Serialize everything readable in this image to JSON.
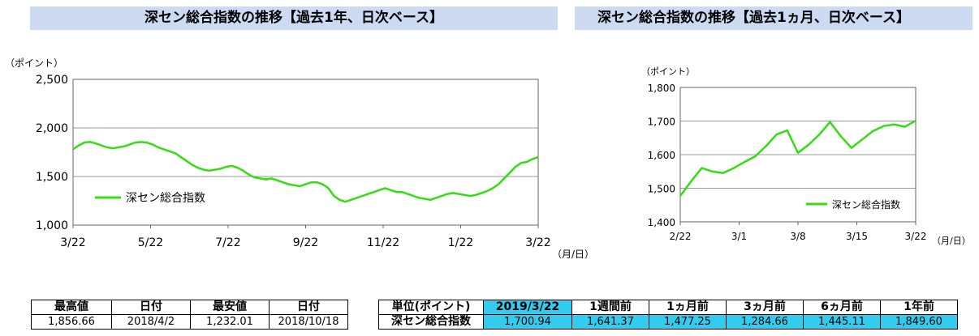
{
  "titles": {
    "left": "深セン総合指数の推移【過去1年、日次ベース】",
    "right": "深セン総合指数の推移【過去1ヵ月、日次ベース】"
  },
  "colors": {
    "line": "#33dd11",
    "title_bg": "#ccdaf2",
    "table_highlight": "#33ccee"
  },
  "chart_data": [
    {
      "type": "line",
      "ylabel": "（ポイント）",
      "xlabel": "（月/日）",
      "ylim": [
        1000,
        2500
      ],
      "yticks": [
        "2,500",
        "2,000",
        "1,500",
        "1,000"
      ],
      "ytick_values": [
        2500,
        2000,
        1500,
        1000
      ],
      "xticks": [
        "3/22",
        "5/22",
        "7/22",
        "9/22",
        "11/22",
        "1/22",
        "3/22"
      ],
      "grid": true,
      "legend": "center-left",
      "series": [
        {
          "name": "深セン総合指数",
          "values": [
            1780,
            1820,
            1850,
            1856,
            1840,
            1820,
            1800,
            1790,
            1800,
            1810,
            1830,
            1850,
            1855,
            1850,
            1830,
            1800,
            1780,
            1760,
            1740,
            1700,
            1660,
            1620,
            1590,
            1570,
            1560,
            1570,
            1580,
            1600,
            1610,
            1590,
            1560,
            1520,
            1490,
            1480,
            1470,
            1480,
            1460,
            1440,
            1420,
            1410,
            1400,
            1420,
            1440,
            1440,
            1420,
            1380,
            1300,
            1260,
            1240,
            1260,
            1280,
            1300,
            1320,
            1340,
            1360,
            1380,
            1360,
            1340,
            1340,
            1320,
            1300,
            1280,
            1270,
            1260,
            1280,
            1300,
            1320,
            1330,
            1320,
            1310,
            1300,
            1310,
            1330,
            1350,
            1380,
            1420,
            1480,
            1540,
            1600,
            1640,
            1650,
            1680,
            1700
          ]
        }
      ]
    },
    {
      "type": "line",
      "ylabel": "（ポイント）",
      "xlabel": "（月/日）",
      "ylim": [
        1400,
        1800
      ],
      "yticks": [
        "1,800",
        "1,700",
        "1,600",
        "1,500",
        "1,400"
      ],
      "ytick_values": [
        1800,
        1700,
        1600,
        1500,
        1400
      ],
      "xticks": [
        "2/22",
        "3/1",
        "3/8",
        "3/15",
        "3/22"
      ],
      "grid": true,
      "legend": "bottom-right",
      "series": [
        {
          "name": "深セン総合指数",
          "values": [
            1477,
            1520,
            1560,
            1550,
            1545,
            1560,
            1578,
            1595,
            1625,
            1660,
            1672,
            1605,
            1630,
            1660,
            1697,
            1655,
            1620,
            1645,
            1670,
            1685,
            1690,
            1683,
            1701
          ]
        }
      ]
    }
  ],
  "table_left": {
    "headers": [
      "最高値",
      "日付",
      "最安値",
      "日付"
    ],
    "values": [
      "1,856.66",
      "2018/4/2",
      "1,232.01",
      "2018/10/18"
    ]
  },
  "table_right": {
    "headers": [
      "単位(ポイント)",
      "2019/3/22",
      "1週間前",
      "1ヵ月前",
      "3ヵ月前",
      "6ヵ月前",
      "1年前"
    ],
    "row_label": "深セン総合指数",
    "values": [
      "1,700.94",
      "1,641.37",
      "1,477.25",
      "1,284.66",
      "1,445.11",
      "1,849.60"
    ]
  }
}
